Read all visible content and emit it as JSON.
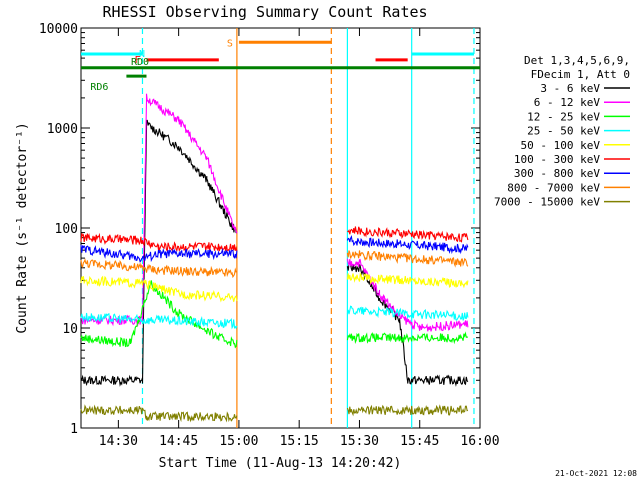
{
  "chart_data": {
    "type": "line",
    "title": "RHESSI Observing Summary Count Rates",
    "xlabel": "Start Time (11-Aug-13 14:20:42)",
    "ylabel": "Count Rate (s⁻¹ detector⁻¹)",
    "yscale": "log",
    "ylim": [
      1,
      10000
    ],
    "xlim": [
      "14:20:42",
      "16:00:00"
    ],
    "x_ticks": [
      "14:30",
      "14:45",
      "15:00",
      "15:15",
      "15:30",
      "15:45",
      "16:00"
    ],
    "y_ticks": [
      "1",
      "10",
      "100",
      "1000",
      "10000"
    ],
    "grid": false,
    "legend_position": "right",
    "legend_header": [
      "Det 1,3,4,5,6,9,",
      "FDecim 1, Att 0"
    ],
    "series": [
      {
        "name": "3 - 6 keV",
        "color": "#000000",
        "points": [
          [
            "14:20:42",
            3
          ],
          [
            "14:36:00",
            3
          ],
          [
            "14:37:00",
            1100
          ],
          [
            "14:45:00",
            650
          ],
          [
            "14:52:00",
            300
          ],
          [
            "14:58:00",
            110
          ],
          [
            "14:59:30",
            90
          ],
          [
            "15:27:00",
            40
          ],
          [
            "15:30:00",
            40
          ],
          [
            "15:35:00",
            20
          ],
          [
            "15:40:00",
            12
          ],
          [
            "15:42:00",
            3
          ],
          [
            "15:57:00",
            3
          ]
        ]
      },
      {
        "name": "6 - 12 keV",
        "color": "#ff00ff",
        "points": [
          [
            "14:20:42",
            12
          ],
          [
            "14:36:00",
            12
          ],
          [
            "14:37:00",
            2000
          ],
          [
            "14:45:00",
            1200
          ],
          [
            "14:52:00",
            500
          ],
          [
            "14:58:00",
            120
          ],
          [
            "14:59:30",
            85
          ],
          [
            "15:27:00",
            45
          ],
          [
            "15:30:00",
            45
          ],
          [
            "15:35:00",
            22
          ],
          [
            "15:40:00",
            13
          ],
          [
            "15:45:00",
            10
          ],
          [
            "15:57:00",
            11
          ]
        ]
      },
      {
        "name": "12 - 25 keV",
        "color": "#00ff00",
        "points": [
          [
            "14:20:42",
            8
          ],
          [
            "14:33:00",
            7
          ],
          [
            "14:35:00",
            12
          ],
          [
            "14:38:00",
            28
          ],
          [
            "14:45:00",
            14
          ],
          [
            "14:55:00",
            8
          ],
          [
            "14:59:30",
            7
          ],
          [
            "15:27:00",
            8
          ],
          [
            "15:57:00",
            8
          ]
        ]
      },
      {
        "name": "25 - 50 keV",
        "color": "#00ffff",
        "points": [
          [
            "14:20:42",
            13
          ],
          [
            "14:36:00",
            12
          ],
          [
            "14:40:00",
            12
          ],
          [
            "14:59:30",
            11
          ],
          [
            "15:27:00",
            15
          ],
          [
            "15:57:00",
            13
          ]
        ]
      },
      {
        "name": "50 - 100 keV",
        "color": "#ffff00",
        "points": [
          [
            "14:20:42",
            30
          ],
          [
            "14:36:00",
            28
          ],
          [
            "14:45:00",
            22
          ],
          [
            "14:59:30",
            20
          ],
          [
            "15:27:00",
            32
          ],
          [
            "15:57:00",
            28
          ]
        ]
      },
      {
        "name": "100 - 300 keV",
        "color": "#ff0000",
        "points": [
          [
            "14:20:42",
            80
          ],
          [
            "14:36:00",
            75
          ],
          [
            "14:40:00",
            65
          ],
          [
            "14:59:30",
            65
          ],
          [
            "15:27:00",
            95
          ],
          [
            "15:57:00",
            80
          ]
        ]
      },
      {
        "name": "300 - 800 keV",
        "color": "#0000ff",
        "points": [
          [
            "14:20:42",
            62
          ],
          [
            "14:36:00",
            50
          ],
          [
            "14:40:00",
            55
          ],
          [
            "14:59:30",
            55
          ],
          [
            "15:27:00",
            75
          ],
          [
            "15:57:00",
            62
          ]
        ]
      },
      {
        "name": "800 - 7000 keV",
        "color": "#ff8000",
        "points": [
          [
            "14:20:42",
            45
          ],
          [
            "14:36:00",
            40
          ],
          [
            "14:40:00",
            38
          ],
          [
            "14:59:30",
            35
          ],
          [
            "15:27:00",
            55
          ],
          [
            "15:57:00",
            45
          ]
        ]
      },
      {
        "name": "7000 - 15000 keV",
        "color": "#808000",
        "points": [
          [
            "14:20:42",
            1.5
          ],
          [
            "14:36:00",
            1.5
          ],
          [
            "14:37:00",
            1.3
          ],
          [
            "14:59:30",
            1.3
          ],
          [
            "15:27:00",
            1.5
          ],
          [
            "15:57:00",
            1.5
          ]
        ]
      }
    ],
    "annotations": [
      {
        "label": "N",
        "color": "#00ffff",
        "kind": "bar",
        "segments": [
          [
            "14:20:42",
            "14:36:00"
          ],
          [
            "15:43:00",
            "15:58:30"
          ]
        ],
        "level": 5500
      },
      {
        "label": "F",
        "color": "#ff0000",
        "kind": "bar",
        "segments": [
          [
            "14:37:00",
            "14:55:00"
          ],
          [
            "15:34:00",
            "15:42:00"
          ]
        ],
        "level": 4800
      },
      {
        "label": "S",
        "color": "#ff8000",
        "kind": "bar",
        "segments": [
          [
            "15:00:00",
            "15:23:00"
          ]
        ],
        "level": 7200
      },
      {
        "label": "RD0",
        "color": "#008000",
        "kind": "bar",
        "segments": [
          [
            "14:20:42",
            "16:00:00"
          ]
        ],
        "level": 4000
      },
      {
        "label": "RD6",
        "color": "#008000",
        "kind": "bar",
        "segments": [
          [
            "14:32:00",
            "14:37:00"
          ]
        ],
        "level": 3300
      }
    ],
    "vlines": [
      {
        "time": "14:36:00",
        "color": "#00ffff",
        "style": "dashed"
      },
      {
        "time": "14:59:30",
        "color": "#ff8000",
        "style": "solid"
      },
      {
        "time": "15:23:00",
        "color": "#ff8000",
        "style": "dashed"
      },
      {
        "time": "15:27:00",
        "color": "#00ffff",
        "style": "solid"
      },
      {
        "time": "15:43:00",
        "color": "#00ffff",
        "style": "solid"
      },
      {
        "time": "15:58:30",
        "color": "#00ffff",
        "style": "dashed"
      }
    ]
  },
  "footer": {
    "timestamp": "21-Oct-2021 12:08"
  }
}
